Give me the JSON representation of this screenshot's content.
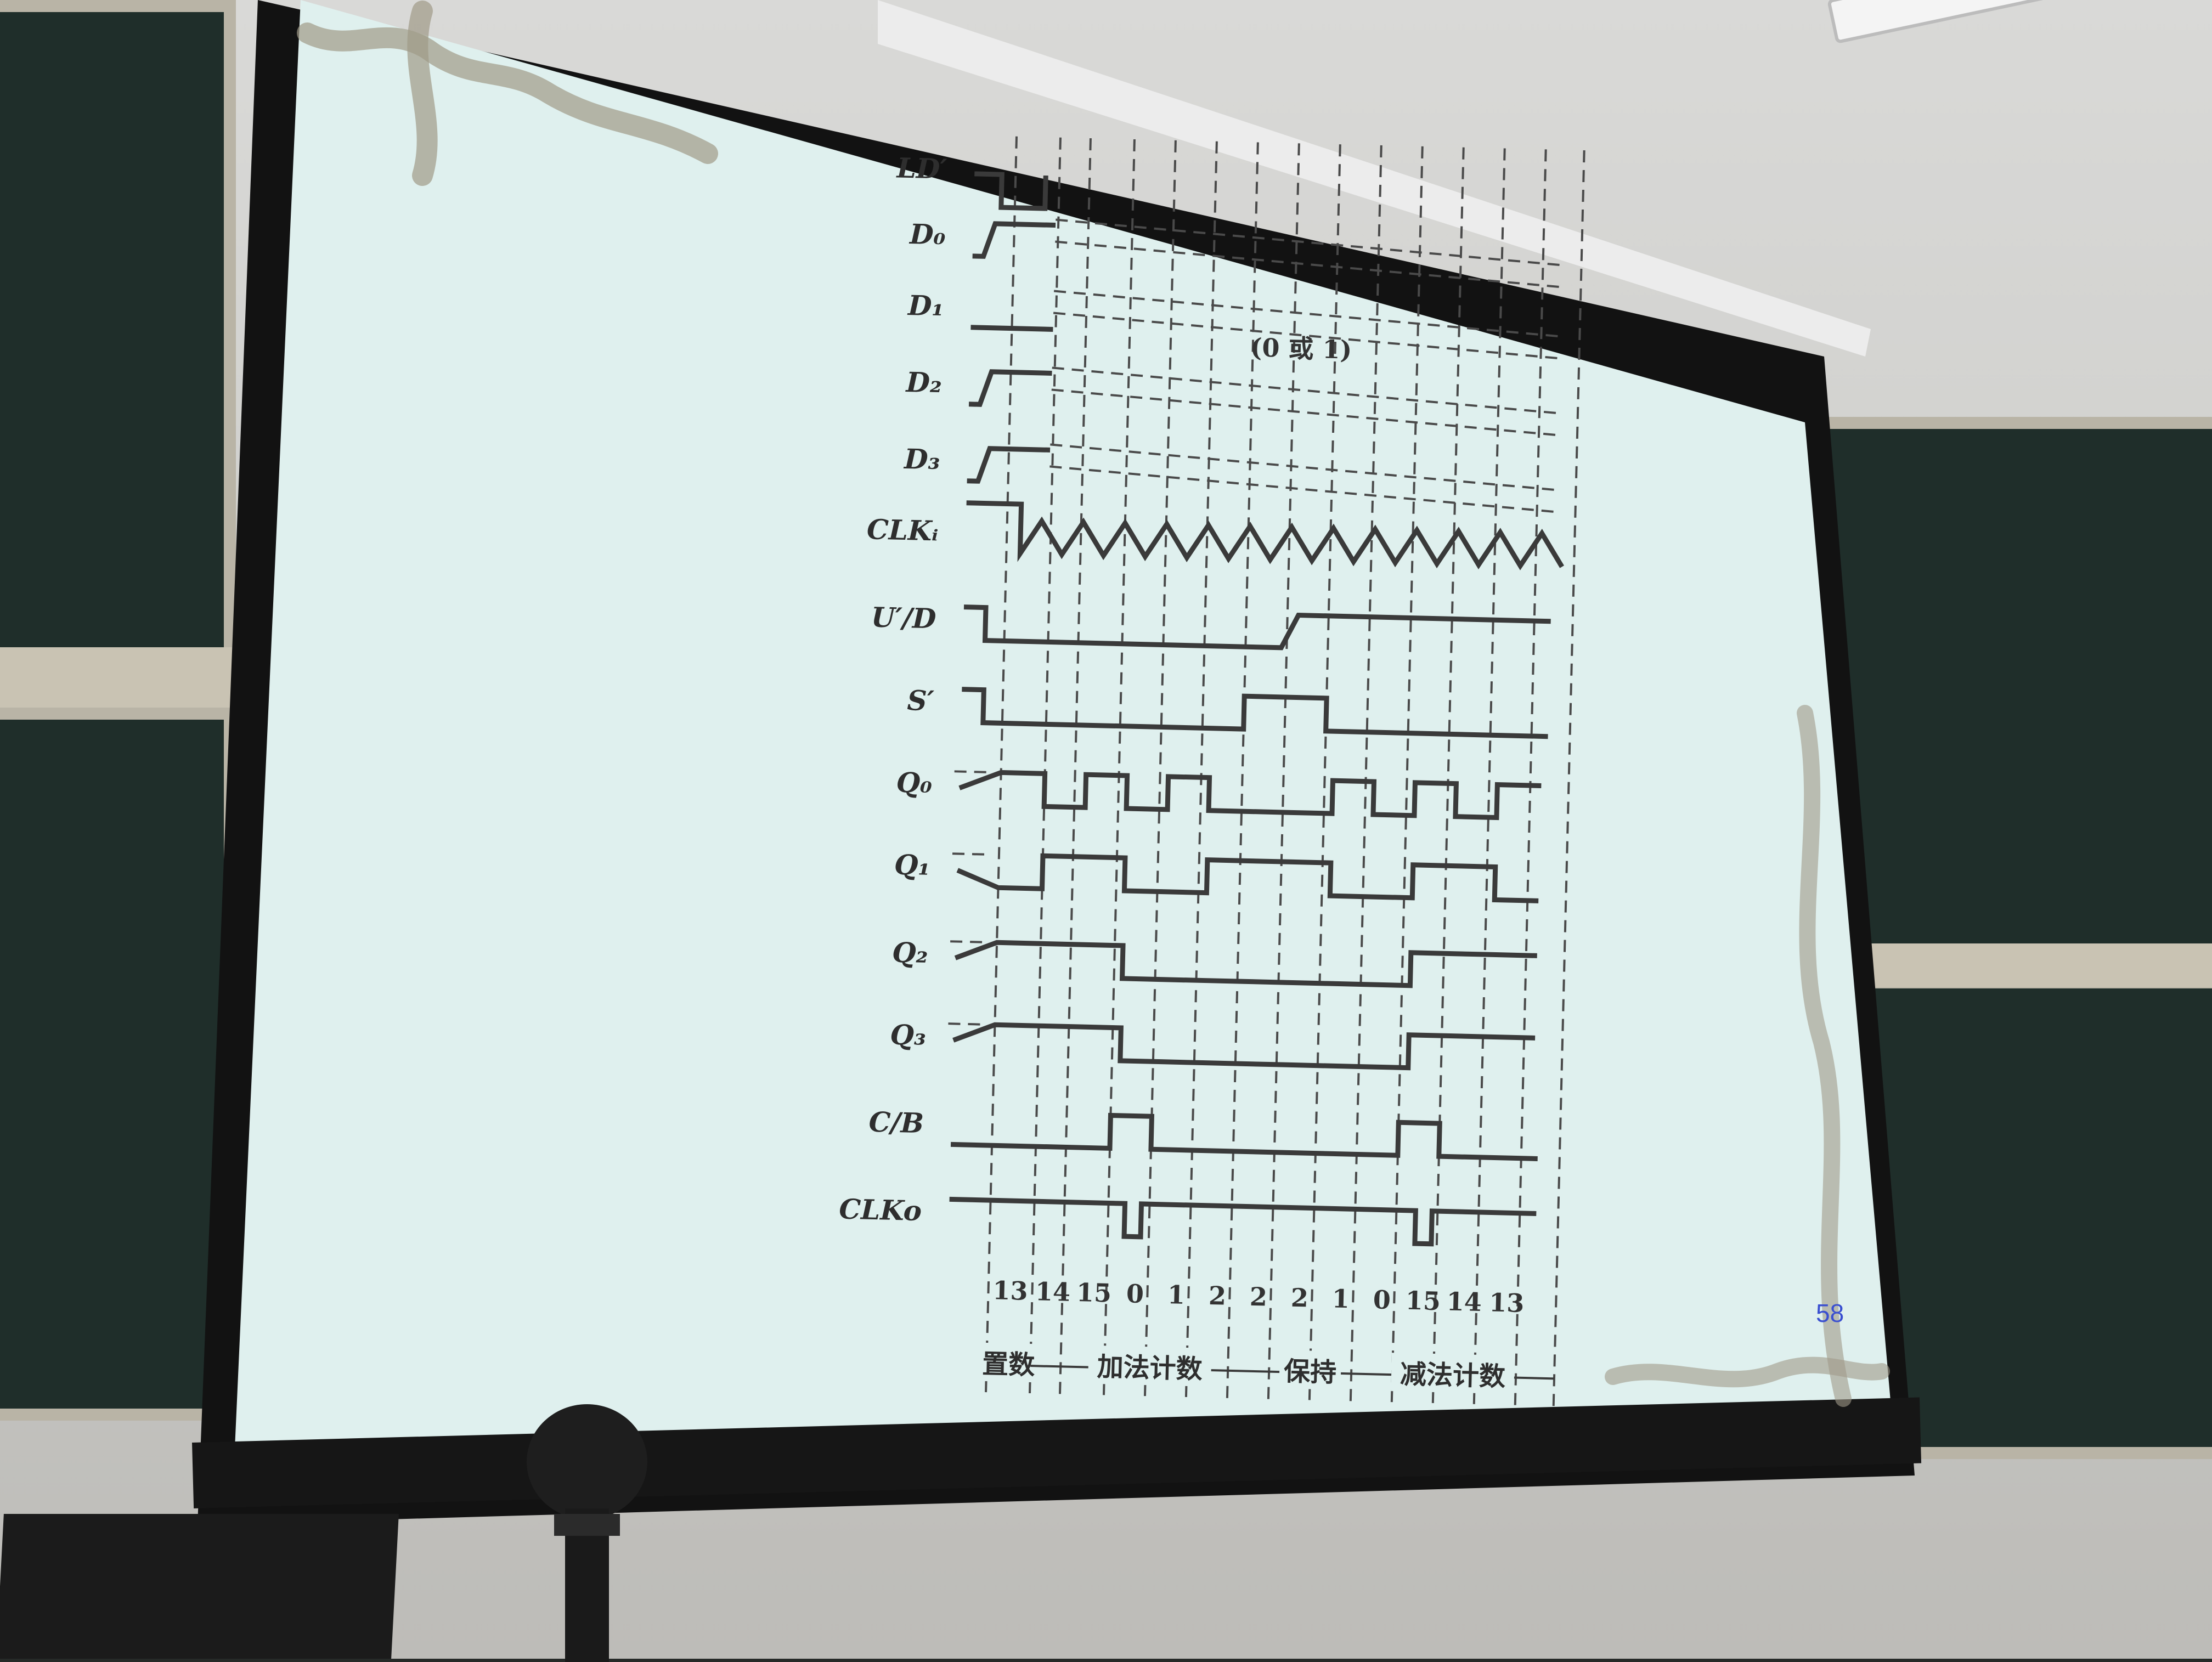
{
  "slide": {
    "page_number": "58",
    "note_value": "(0 或 1)",
    "signals": [
      {
        "key": "LD",
        "text": "LD′"
      },
      {
        "key": "D0",
        "text": "D₀"
      },
      {
        "key": "D1",
        "text": "D₁"
      },
      {
        "key": "D2",
        "text": "D₂"
      },
      {
        "key": "D3",
        "text": "D₃"
      },
      {
        "key": "CLKI",
        "text": "CLKᵢ"
      },
      {
        "key": "UD",
        "text": "U′/D"
      },
      {
        "key": "S",
        "text": "S′"
      },
      {
        "key": "Q0",
        "text": "Q₀"
      },
      {
        "key": "Q1",
        "text": "Q₁"
      },
      {
        "key": "Q2",
        "text": "Q₂"
      },
      {
        "key": "Q3",
        "text": "Q₃"
      },
      {
        "key": "CB",
        "text": "C/B"
      },
      {
        "key": "CLKO",
        "text": "CLKo"
      }
    ],
    "count_values": [
      "13",
      "14",
      "15",
      "0",
      "1",
      "2",
      "2",
      "2",
      "1",
      "0",
      "15",
      "14",
      "13"
    ],
    "phases": [
      {
        "key": "load",
        "text": "置数"
      },
      {
        "key": "up",
        "text": "加法计数"
      },
      {
        "key": "hold",
        "text": "保持"
      },
      {
        "key": "down",
        "text": "减法计数"
      }
    ]
  },
  "colors": {
    "slide_bg": "#dff0ee",
    "trace": "#3a3a3a",
    "page_number": "#3a4fd0"
  }
}
